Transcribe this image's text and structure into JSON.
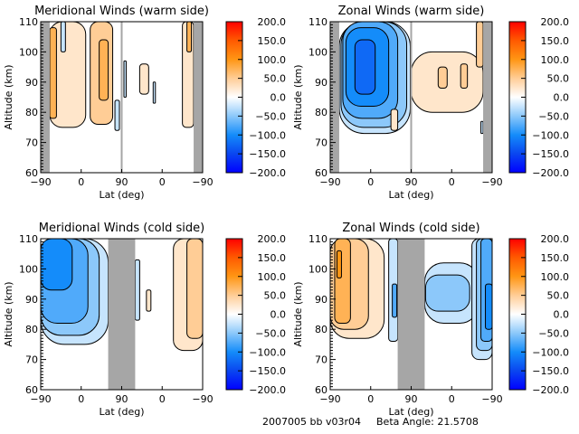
{
  "footer": {
    "run_id": "2007005 bb v03r04",
    "beta_angle_label": "Beta Angle:",
    "beta_angle_value": "21.5708"
  },
  "chart_data": [
    {
      "type": "heatmap",
      "title": "Meridional Winds (warm side)",
      "xlabel": "Lat (deg)",
      "ylabel": "Altitude (km)",
      "x_tick_labels": [
        "-90",
        "0",
        "90",
        "0",
        "-90"
      ],
      "y_ticks": [
        60,
        70,
        80,
        90,
        100,
        110
      ],
      "ylim": [
        60,
        110
      ],
      "x_scale": "ascending pass -90→90 then descending 90→-90",
      "colorbar": {
        "min": -200,
        "max": 200,
        "ticks": [
          "200.0",
          "150.0",
          "100.0",
          "50.0",
          "0.0",
          "-50.0",
          "-100.0",
          "-150.0",
          "-200.0"
        ]
      },
      "no_data_bands": [
        {
          "lat_from": -90,
          "lat_to": -70,
          "pass": "first"
        },
        {
          "lat_from": 88,
          "lat_to": 90,
          "pass": "first"
        },
        {
          "lat_from": -70,
          "lat_to": -90,
          "pass": "second"
        }
      ],
      "regions": [
        {
          "value": 25,
          "pass": "first",
          "lat": [
            -70,
            10
          ],
          "alt": [
            75,
            110
          ]
        },
        {
          "value": 75,
          "pass": "first",
          "lat": [
            -70,
            -55
          ],
          "alt": [
            78,
            108
          ]
        },
        {
          "value": 50,
          "pass": "first",
          "lat": [
            20,
            70
          ],
          "alt": [
            76,
            110
          ]
        },
        {
          "value": 75,
          "pass": "first",
          "lat": [
            40,
            60
          ],
          "alt": [
            84,
            104
          ]
        },
        {
          "value": -25,
          "pass": "first",
          "lat": [
            -45,
            -35
          ],
          "alt": [
            100,
            110
          ]
        },
        {
          "value": -25,
          "pass": "first",
          "lat": [
            75,
            85
          ],
          "alt": [
            74,
            84
          ]
        },
        {
          "value": 25,
          "pass": "second",
          "lat": [
            50,
            30
          ],
          "alt": [
            86,
            96
          ]
        },
        {
          "value": -25,
          "pass": "second",
          "lat": [
            85,
            80
          ],
          "alt": [
            85,
            97
          ]
        },
        {
          "value": -25,
          "pass": "second",
          "lat": [
            20,
            15
          ],
          "alt": [
            83,
            90
          ]
        },
        {
          "value": 25,
          "pass": "second",
          "lat": [
            -45,
            -70
          ],
          "alt": [
            75,
            110
          ]
        },
        {
          "value": 75,
          "pass": "second",
          "lat": [
            -55,
            -65
          ],
          "alt": [
            100,
            110
          ]
        }
      ]
    },
    {
      "type": "heatmap",
      "title": "Zonal Winds (warm side)",
      "xlabel": "Lat (deg)",
      "ylabel": "Altitude (km)",
      "x_tick_labels": [
        "-90",
        "0",
        "90",
        "0",
        "-90"
      ],
      "y_ticks": [
        60,
        70,
        80,
        90,
        100,
        110
      ],
      "ylim": [
        60,
        110
      ],
      "colorbar": {
        "min": -200,
        "max": 200,
        "ticks": [
          "200.0",
          "150.0",
          "100.0",
          "50.0",
          "0.0",
          "-50.0",
          "-100.0",
          "-150.0",
          "-200.0"
        ]
      },
      "no_data_bands": [
        {
          "lat_from": -90,
          "lat_to": -70,
          "pass": "first"
        },
        {
          "lat_from": 88,
          "lat_to": 90,
          "pass": "first"
        },
        {
          "lat_from": -70,
          "lat_to": -90,
          "pass": "second"
        }
      ],
      "regions": [
        {
          "value": -25,
          "pass": "first",
          "lat": [
            -70,
            88
          ],
          "alt": [
            73,
            110
          ]
        },
        {
          "value": -50,
          "pass": "first",
          "lat": [
            -66,
            80
          ],
          "alt": [
            75,
            110
          ]
        },
        {
          "value": -75,
          "pass": "first",
          "lat": [
            -62,
            60
          ],
          "alt": [
            78,
            110
          ]
        },
        {
          "value": -100,
          "pass": "first",
          "lat": [
            -55,
            40
          ],
          "alt": [
            82,
            108
          ]
        },
        {
          "value": -125,
          "pass": "first",
          "lat": [
            -35,
            10
          ],
          "alt": [
            86,
            104
          ]
        },
        {
          "value": 25,
          "pass": "first",
          "lat": [
            45,
            60
          ],
          "alt": [
            74,
            81
          ]
        },
        {
          "value": 25,
          "pass": "second",
          "lat": [
            90,
            -70
          ],
          "alt": [
            80,
            100
          ]
        },
        {
          "value": 50,
          "pass": "second",
          "lat": [
            30,
            10
          ],
          "alt": [
            88,
            95
          ]
        },
        {
          "value": 50,
          "pass": "second",
          "lat": [
            -20,
            -35
          ],
          "alt": [
            88,
            96
          ]
        },
        {
          "value": 50,
          "pass": "second",
          "lat": [
            -55,
            -70
          ],
          "alt": [
            95,
            110
          ]
        },
        {
          "value": -25,
          "pass": "second",
          "lat": [
            -65,
            -70
          ],
          "alt": [
            73,
            77
          ]
        }
      ]
    },
    {
      "type": "heatmap",
      "title": "Meridional Winds (cold side)",
      "xlabel": "Lat (deg)",
      "ylabel": "Altitude (km)",
      "x_tick_labels": [
        "-90",
        "0",
        "90",
        "0",
        "-90"
      ],
      "y_ticks": [
        60,
        70,
        80,
        90,
        100,
        110
      ],
      "ylim": [
        60,
        110
      ],
      "colorbar": {
        "min": -200,
        "max": 200,
        "ticks": [
          "200.0",
          "150.0",
          "100.0",
          "50.0",
          "0.0",
          "-50.0",
          "-100.0",
          "-150.0",
          "-200.0"
        ]
      },
      "no_data_bands": [
        {
          "lat_from": 60,
          "lat_to": 90,
          "pass": "first"
        },
        {
          "lat_from": 90,
          "lat_to": 60,
          "pass": "second"
        }
      ],
      "regions": [
        {
          "value": -25,
          "pass": "first",
          "lat": [
            -90,
            60
          ],
          "alt": [
            75,
            110
          ]
        },
        {
          "value": -50,
          "pass": "first",
          "lat": [
            -90,
            40
          ],
          "alt": [
            78,
            110
          ]
        },
        {
          "value": -75,
          "pass": "first",
          "lat": [
            -90,
            15
          ],
          "alt": [
            82,
            110
          ]
        },
        {
          "value": -100,
          "pass": "first",
          "lat": [
            -90,
            -20
          ],
          "alt": [
            93,
            110
          ]
        },
        {
          "value": -25,
          "pass": "second",
          "lat": [
            60,
            50
          ],
          "alt": [
            83,
            103
          ]
        },
        {
          "value": 25,
          "pass": "second",
          "lat": [
            35,
            25
          ],
          "alt": [
            86,
            93
          ]
        },
        {
          "value": 25,
          "pass": "second",
          "lat": [
            -25,
            -90
          ],
          "alt": [
            73,
            110
          ]
        },
        {
          "value": 50,
          "pass": "second",
          "lat": [
            -55,
            -90
          ],
          "alt": [
            77,
            110
          ]
        }
      ]
    },
    {
      "type": "heatmap",
      "title": "Zonal Winds (cold side)",
      "xlabel": "Lat (deg)",
      "ylabel": "Altitude (km)",
      "x_tick_labels": [
        "-90",
        "0",
        "90",
        "0",
        "-90"
      ],
      "y_ticks": [
        60,
        70,
        80,
        90,
        100,
        110
      ],
      "ylim": [
        60,
        110
      ],
      "colorbar": {
        "min": -200,
        "max": 200,
        "ticks": [
          "200.0",
          "150.0",
          "100.0",
          "50.0",
          "0.0",
          "-50.0",
          "-100.0",
          "-150.0",
          "-200.0"
        ]
      },
      "no_data_bands": [
        {
          "lat_from": 60,
          "lat_to": 90,
          "pass": "first"
        },
        {
          "lat_from": 90,
          "lat_to": 60,
          "pass": "second"
        }
      ],
      "regions": [
        {
          "value": 25,
          "pass": "first",
          "lat": [
            -90,
            30
          ],
          "alt": [
            77,
            110
          ]
        },
        {
          "value": 50,
          "pass": "first",
          "lat": [
            -90,
            -5
          ],
          "alt": [
            80,
            110
          ]
        },
        {
          "value": 75,
          "pass": "first",
          "lat": [
            -80,
            -45
          ],
          "alt": [
            82,
            110
          ]
        },
        {
          "value": 100,
          "pass": "first",
          "lat": [
            -75,
            -65
          ],
          "alt": [
            97,
            106
          ]
        },
        {
          "value": -25,
          "pass": "first",
          "lat": [
            40,
            60
          ],
          "alt": [
            76,
            110
          ]
        },
        {
          "value": -75,
          "pass": "first",
          "lat": [
            48,
            58
          ],
          "alt": [
            84,
            95
          ]
        },
        {
          "value": -25,
          "pass": "second",
          "lat": [
            60,
            -60
          ],
          "alt": [
            82,
            102
          ]
        },
        {
          "value": -50,
          "pass": "second",
          "lat": [
            58,
            -40
          ],
          "alt": [
            86,
            98
          ]
        },
        {
          "value": -25,
          "pass": "second",
          "lat": [
            -45,
            -90
          ],
          "alt": [
            70,
            110
          ]
        },
        {
          "value": -50,
          "pass": "second",
          "lat": [
            -55,
            -90
          ],
          "alt": [
            73,
            110
          ]
        },
        {
          "value": -75,
          "pass": "second",
          "lat": [
            -65,
            -90
          ],
          "alt": [
            76,
            110
          ]
        },
        {
          "value": -100,
          "pass": "second",
          "lat": [
            -75,
            -90
          ],
          "alt": [
            80,
            95
          ]
        }
      ]
    }
  ]
}
